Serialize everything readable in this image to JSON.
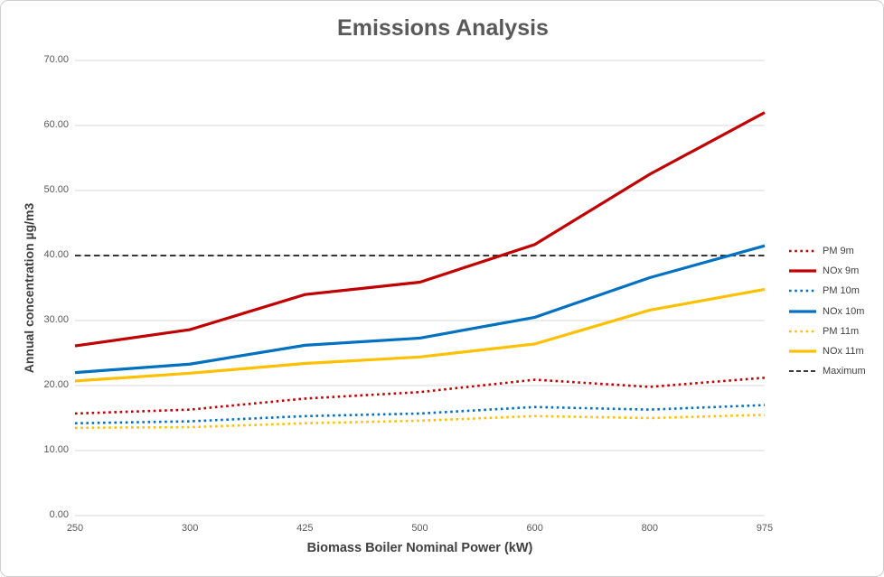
{
  "chart_title": "Emissions Analysis",
  "chart_data": {
    "type": "line",
    "title": "Emissions Analysis",
    "xlabel": "Biomass Boiler Nominal Power (kW)",
    "ylabel": "Annual concentration µg/m3",
    "categories": [
      250,
      300,
      425,
      500,
      600,
      800,
      975
    ],
    "x_tick_labels": [
      "250",
      "300",
      "425",
      "500",
      "600",
      "800",
      "975"
    ],
    "y_ticks": [
      0,
      10,
      20,
      30,
      40,
      50,
      60,
      70
    ],
    "y_tick_labels": [
      "0.00",
      "10.00",
      "20.00",
      "30.00",
      "40.00",
      "50.00",
      "60.00",
      "70.00"
    ],
    "ylim": [
      0,
      70
    ],
    "grid": "horizontal",
    "legend_position": "right",
    "series": [
      {
        "name": "PM 9m",
        "color": "#C00000",
        "style": "dotted",
        "values": [
          15.7,
          16.3,
          18.0,
          19.0,
          20.9,
          19.8,
          21.2
        ]
      },
      {
        "name": "NOx 9m",
        "color": "#C00000",
        "style": "solid",
        "values": [
          26.1,
          28.6,
          34.0,
          35.9,
          41.7,
          52.5,
          62.0
        ]
      },
      {
        "name": "PM 10m",
        "color": "#0070C0",
        "style": "dotted",
        "values": [
          14.2,
          14.5,
          15.3,
          15.7,
          16.7,
          16.3,
          17.0
        ]
      },
      {
        "name": "NOx 10m",
        "color": "#0070C0",
        "style": "solid",
        "values": [
          22.0,
          23.3,
          26.2,
          27.3,
          30.5,
          36.6,
          41.5
        ]
      },
      {
        "name": "PM 11m",
        "color": "#FFC000",
        "style": "dotted",
        "values": [
          13.5,
          13.6,
          14.2,
          14.6,
          15.3,
          15.0,
          15.5
        ]
      },
      {
        "name": "NOx 11m",
        "color": "#FFC000",
        "style": "solid",
        "values": [
          20.7,
          21.9,
          23.4,
          24.4,
          26.4,
          31.6,
          34.8
        ]
      },
      {
        "name": "Maximum",
        "color": "#1A1A1A",
        "style": "dashed",
        "values": [
          40,
          40,
          40,
          40,
          40,
          40,
          40
        ]
      }
    ]
  },
  "colors": {
    "gridline": "#D9D9D9",
    "frame_border": "#D0CECE",
    "title_text": "#595959",
    "axis_title_text": "#404040",
    "tick_text": "#595959"
  }
}
